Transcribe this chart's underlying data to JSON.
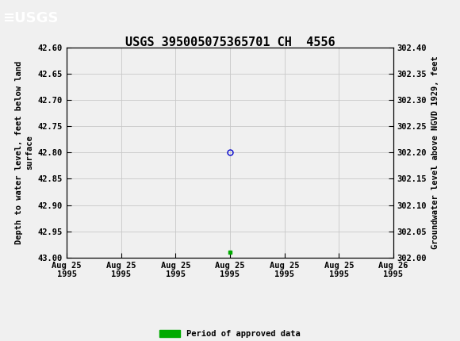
{
  "title": "USGS 395005075365701 CH  4556",
  "header_color": "#1a6b3c",
  "bg_color": "#f0f0f0",
  "plot_bg_color": "#f0f0f0",
  "grid_color": "#c8c8c8",
  "ylabel_left": "Depth to water level, feet below land\nsurface",
  "ylabel_right": "Groundwater level above NGVD 1929, feet",
  "ylim_left": [
    42.6,
    43.0
  ],
  "ylim_right": [
    302.0,
    302.4
  ],
  "yticks_left": [
    42.6,
    42.65,
    42.7,
    42.75,
    42.8,
    42.85,
    42.9,
    42.95,
    43.0
  ],
  "yticks_right": [
    302.0,
    302.05,
    302.1,
    302.15,
    302.2,
    302.25,
    302.3,
    302.35,
    302.4
  ],
  "point_depth": 42.8,
  "point_color": "#0000cc",
  "point_marker_size": 5,
  "square_depth": 42.99,
  "square_color": "#00aa00",
  "square_marker_size": 3.5,
  "legend_label": "Period of approved data",
  "legend_color": "#00aa00",
  "xlabel_ticks": [
    "Aug 25\n1995",
    "Aug 25\n1995",
    "Aug 25\n1995",
    "Aug 25\n1995",
    "Aug 25\n1995",
    "Aug 25\n1995",
    "Aug 26\n1995"
  ],
  "xlim": [
    -3,
    3
  ],
  "point_x": 0,
  "square_x": 0,
  "title_fontsize": 11,
  "axis_label_fontsize": 7.5,
  "tick_fontsize": 7.5
}
